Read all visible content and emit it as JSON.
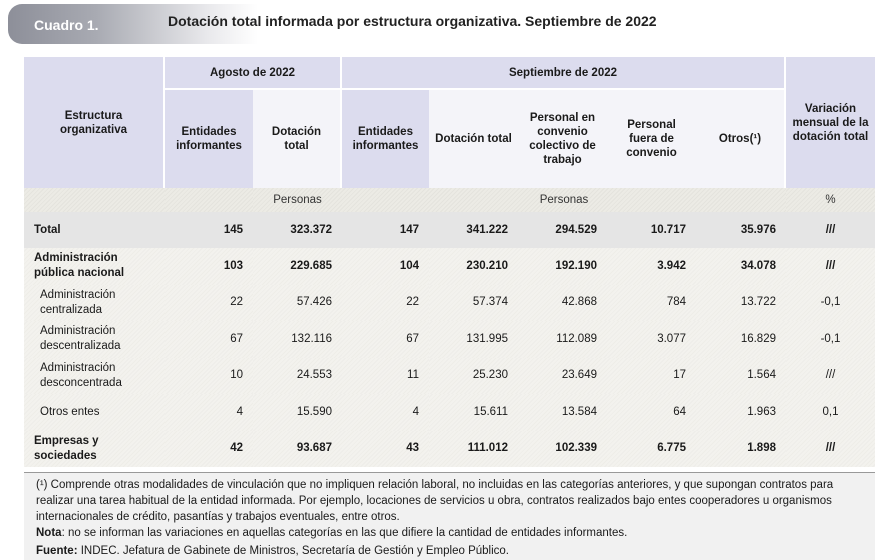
{
  "header": {
    "label": "Cuadro 1.",
    "title": "Dotación total informada por estructura organizativa. Septiembre de 2022"
  },
  "table": {
    "col_estructura": "Estructura organizativa",
    "group_agosto": "Agosto de 2022",
    "group_septiembre": "Septiembre de 2022",
    "col_variacion": "Variación mensual de la dotación total",
    "col_entidades": "Entidades informantes",
    "col_dotacion": "Dotación total",
    "col_convenio": "Personal en convenio colectivo de trabajo",
    "col_fuera": "Personal fuera de convenio",
    "col_otros": "Otros(¹)",
    "unit_personas": "Personas",
    "unit_pct": "%",
    "rows": [
      {
        "label": "Total",
        "cells": [
          "145",
          "323.372",
          "147",
          "341.222",
          "294.529",
          "10.717",
          "35.976",
          "///"
        ]
      },
      {
        "label": "Administración pública nacional",
        "cells": [
          "103",
          "229.685",
          "104",
          "230.210",
          "192.190",
          "3.942",
          "34.078",
          "///"
        ]
      },
      {
        "label": "Administración centralizada",
        "cells": [
          "22",
          "57.426",
          "22",
          "57.374",
          "42.868",
          "784",
          "13.722",
          "-0,1"
        ]
      },
      {
        "label": "Administración descentralizada",
        "cells": [
          "67",
          "132.116",
          "67",
          "131.995",
          "112.089",
          "3.077",
          "16.829",
          "-0,1"
        ]
      },
      {
        "label": "Administración desconcentrada",
        "cells": [
          "10",
          "24.553",
          "11",
          "25.230",
          "23.649",
          "17",
          "1.564",
          "///"
        ]
      },
      {
        "label": "Otros entes",
        "cells": [
          "4",
          "15.590",
          "4",
          "15.611",
          "13.584",
          "64",
          "1.963",
          "0,1"
        ]
      },
      {
        "label": "Empresas y sociedades",
        "cells": [
          "42",
          "93.687",
          "43",
          "111.012",
          "102.339",
          "6.775",
          "1.898",
          "///"
        ]
      }
    ]
  },
  "notes": {
    "footnote": "(¹) Comprende otras modalidades de vinculación que no impliquen relación laboral, no incluidas en las categorías anteriores, y que supongan contratos para realizar una tarea habitual de la entidad informada. Por ejemplo, locaciones de servicios u obra, contratos realizados bajo entes cooperadores u organismos internacionales de crédito, pasantías y trabajos eventuales, entre otros.",
    "nota_label": "Nota",
    "nota_text": ": no se informan las variaciones en aquellas categorías en las que difiere la cantidad de entidades informantes.",
    "fuente_label": "Fuente:",
    "fuente_text": " INDEC. Jefatura de Gabinete de Ministros, Secretaría de Gestión y Empleo Público."
  }
}
